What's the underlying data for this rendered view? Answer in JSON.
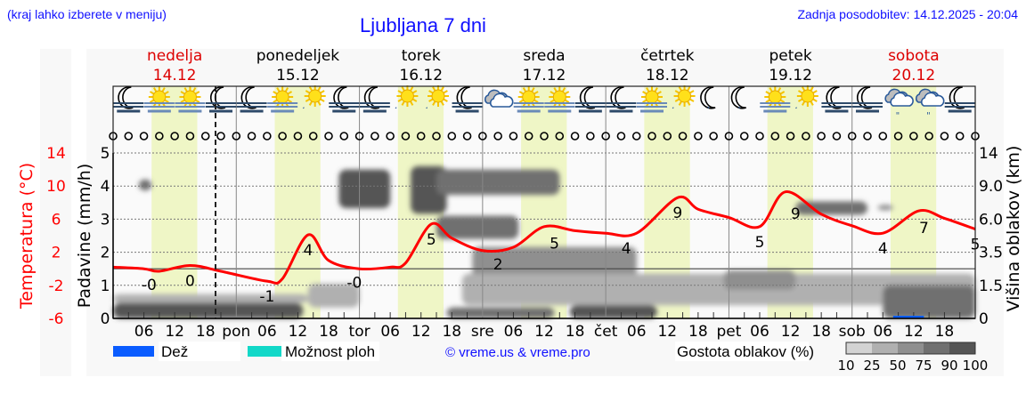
{
  "header": {
    "hint": "(kraj lahko izberete v meniju)",
    "title": "Ljubljana 7 dni",
    "updated": "Zadnja posodobitev: 14.12.2025 - 20:04"
  },
  "chart_data": {
    "type": "line",
    "title": "Ljubljana 7 dni",
    "days": [
      {
        "name": "nedelja",
        "date": "14.12",
        "abbr": "",
        "weekend": true
      },
      {
        "name": "ponedeljek",
        "date": "15.12",
        "abbr": "pon",
        "weekend": false
      },
      {
        "name": "torek",
        "date": "16.12",
        "abbr": "tor",
        "weekend": false
      },
      {
        "name": "sreda",
        "date": "17.12",
        "abbr": "sre",
        "weekend": false
      },
      {
        "name": "četrtek",
        "date": "18.12",
        "abbr": "čet",
        "weekend": false
      },
      {
        "name": "petek",
        "date": "19.12",
        "abbr": "pet",
        "weekend": false
      },
      {
        "name": "sobota",
        "date": "20.12",
        "abbr": "sob",
        "weekend": true
      }
    ],
    "hour_ticks": [
      "06",
      "12",
      "18"
    ],
    "current_time": "14.12 20:00",
    "daylight_hours": [
      7.5,
      16.4
    ],
    "axes": {
      "temperature": {
        "label": "Temperatura (°C)",
        "range": [
          -6,
          14
        ],
        "ticks": [
          "14",
          "10",
          "6",
          "2",
          "-2",
          "-6"
        ]
      },
      "precipitation": {
        "label": "Padavine (mm/h)",
        "range": [
          0,
          5
        ],
        "ticks": [
          "0",
          "1",
          "2",
          "3",
          "4",
          "5"
        ]
      },
      "cloud_height": {
        "label": "Višina oblakov (km)",
        "ticks": [
          "0",
          "1.5",
          "3.5",
          "6.0",
          "9.0",
          "14"
        ],
        "tick_values": [
          0,
          1.5,
          3.5,
          6.0,
          9.0,
          14
        ]
      }
    },
    "grid": true,
    "temperature_series": [
      [
        0,
        0.2
      ],
      [
        6,
        0
      ],
      [
        9,
        -0.3
      ],
      [
        15,
        0.4
      ],
      [
        21,
        -0.3
      ],
      [
        30,
        -1.5
      ],
      [
        33,
        -1.2
      ],
      [
        38,
        4.1
      ],
      [
        42,
        1.0
      ],
      [
        48,
        0
      ],
      [
        54,
        0.2
      ],
      [
        57,
        0.7
      ],
      [
        62,
        5.4
      ],
      [
        66,
        3.7
      ],
      [
        72,
        2.2
      ],
      [
        78,
        2.6
      ],
      [
        84,
        5.1
      ],
      [
        90,
        4.6
      ],
      [
        96,
        4.3
      ],
      [
        102,
        4.3
      ],
      [
        110,
        8.6
      ],
      [
        114,
        7.2
      ],
      [
        120,
        6.2
      ],
      [
        126,
        5.1
      ],
      [
        131,
        9.3
      ],
      [
        138,
        6.6
      ],
      [
        144,
        5.2
      ],
      [
        150,
        4.3
      ],
      [
        157,
        7.0
      ],
      [
        162,
        6.1
      ],
      [
        168,
        4.8
      ]
    ],
    "temperature_labels": [
      {
        "hour": 7,
        "text": "-0"
      },
      {
        "hour": 15,
        "text": "0"
      },
      {
        "hour": 30,
        "text": "-1"
      },
      {
        "hour": 38,
        "text": "4"
      },
      {
        "hour": 47,
        "text": "-0"
      },
      {
        "hour": 62,
        "text": "5"
      },
      {
        "hour": 75,
        "text": "2"
      },
      {
        "hour": 86,
        "text": "5"
      },
      {
        "hour": 100,
        "text": "4"
      },
      {
        "hour": 110,
        "text": "9"
      },
      {
        "hour": 126,
        "text": "5"
      },
      {
        "hour": 133,
        "text": "9"
      },
      {
        "hour": 150,
        "text": "4"
      },
      {
        "hour": 158,
        "text": "7"
      },
      {
        "hour": 168,
        "text": "5"
      }
    ],
    "precipitation": [
      {
        "hour_from": 152,
        "hour_to": 158,
        "mm_h": 0.08,
        "type": "rain"
      }
    ],
    "clouds": [
      {
        "h": [
          5,
          7.5
        ],
        "km": [
          8.6,
          10
        ],
        "density": 75
      },
      {
        "h": [
          0,
          38
        ],
        "km": [
          0.7,
          1.1
        ],
        "density": 25
      },
      {
        "h": [
          0,
          37
        ],
        "km": [
          0,
          0.7
        ],
        "density": 90
      },
      {
        "h": [
          38,
          48
        ],
        "km": [
          0.5,
          1.6
        ],
        "density": 25
      },
      {
        "h": [
          44,
          54
        ],
        "km": [
          7.0,
          11.5
        ],
        "density": 90
      },
      {
        "h": [
          58,
          65
        ],
        "km": [
          6.5,
          12
        ],
        "density": 90
      },
      {
        "h": [
          63,
          87
        ],
        "km": [
          8.2,
          11.5
        ],
        "density": 75
      },
      {
        "h": [
          63,
          79
        ],
        "km": [
          4.5,
          6.3
        ],
        "density": 75
      },
      {
        "h": [
          70,
          102
        ],
        "km": [
          1.3,
          3.9
        ],
        "density": 50
      },
      {
        "h": [
          68,
          168
        ],
        "km": [
          0.6,
          2.2
        ],
        "density": 25
      },
      {
        "h": [
          65,
          86
        ],
        "km": [
          0,
          0.5
        ],
        "density": 75
      },
      {
        "h": [
          89,
          106
        ],
        "km": [
          0,
          0.6
        ],
        "density": 90
      },
      {
        "h": [
          119,
          133
        ],
        "km": [
          1.3,
          2.4
        ],
        "density": 50
      },
      {
        "h": [
          133,
          147
        ],
        "km": [
          6.4,
          7.6
        ],
        "density": 75
      },
      {
        "h": [
          149,
          152
        ],
        "km": [
          6.8,
          7.3
        ],
        "density": 50
      },
      {
        "h": [
          150,
          168
        ],
        "km": [
          0,
          1.5
        ],
        "density": 75
      }
    ],
    "weather_icons": [
      "moon-fog",
      "sun-fog",
      "sun-fog",
      "moon-fog",
      "moon-fog",
      "sun-fog",
      "sun-cloud",
      "moon-fog",
      "moon-fog",
      "sun-cloud",
      "sun-cloud",
      "moon-fog",
      "overcast",
      "sun-fog",
      "sun-fog",
      "moon-fog",
      "moon-fog",
      "sun-fog",
      "sun-cloud",
      "moon-cloud",
      "moon-cloud",
      "sun-fog",
      "sun-cloud",
      "moon-fog",
      "moon-fog",
      "cloud-rain",
      "cloud-rain",
      "moon-fog"
    ],
    "wind_markers": 57
  },
  "legend": {
    "rain": {
      "label": "Dež",
      "color": "#0a5cff"
    },
    "showers": {
      "label": "Možnost ploh",
      "color": "#12d8c8"
    },
    "copyright": "© vreme.us & vreme.pro",
    "density_title": "Gostota oblakov (%)",
    "density_scale": [
      {
        "label": "10",
        "color": "#d3d3d3"
      },
      {
        "label": "25",
        "color": "#b0b0b0"
      },
      {
        "label": "50",
        "color": "#8f8f8f"
      },
      {
        "label": "75",
        "color": "#707070"
      },
      {
        "label": "90",
        "color": "#555555"
      }
    ],
    "density_max_label": "100"
  },
  "colors": {
    "temperature": "#ff0000",
    "weekend": "#dd0000",
    "daylight": "#eff6c6",
    "title": "#1010ff"
  }
}
